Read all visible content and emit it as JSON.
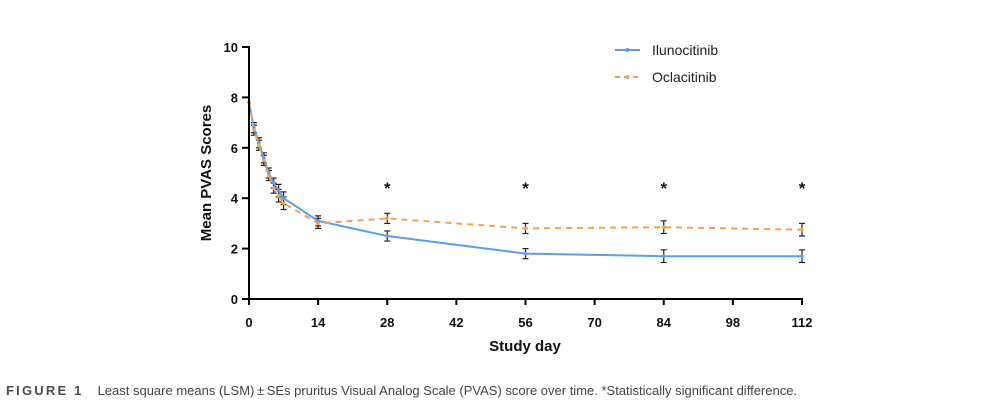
{
  "chart_data": {
    "type": "line",
    "title": "",
    "xlabel": "Study day",
    "ylabel": "Mean PVAS Scores",
    "xlim": [
      0,
      112
    ],
    "ylim": [
      0,
      10
    ],
    "x_ticks": [
      0,
      14,
      28,
      42,
      56,
      70,
      84,
      98,
      112
    ],
    "y_ticks": [
      0,
      2,
      4,
      6,
      8,
      10
    ],
    "grid": false,
    "legend_position": "top-right",
    "series": [
      {
        "name": "Ilunocitinib",
        "color": "#5b9ee9",
        "line_style": "solid",
        "marker": "dot",
        "points": [
          {
            "x": 0,
            "y": 7.8,
            "se": 0.0
          },
          {
            "x": 1,
            "y": 6.8,
            "se": 0.2
          },
          {
            "x": 2,
            "y": 6.2,
            "se": 0.2
          },
          {
            "x": 3,
            "y": 5.6,
            "se": 0.2
          },
          {
            "x": 4,
            "y": 5.0,
            "se": 0.2
          },
          {
            "x": 5,
            "y": 4.6,
            "se": 0.2
          },
          {
            "x": 6,
            "y": 4.3,
            "se": 0.25
          },
          {
            "x": 7,
            "y": 4.0,
            "se": 0.25
          },
          {
            "x": 14,
            "y": 3.1,
            "se": 0.2
          },
          {
            "x": 28,
            "y": 2.5,
            "se": 0.2
          },
          {
            "x": 56,
            "y": 1.8,
            "se": 0.2
          },
          {
            "x": 84,
            "y": 1.7,
            "se": 0.25
          },
          {
            "x": 112,
            "y": 1.7,
            "se": 0.25
          }
        ]
      },
      {
        "name": "Oclacitinib",
        "color": "#f5a04a",
        "line_style": "dashed",
        "marker": "dot",
        "points": [
          {
            "x": 0,
            "y": 7.8,
            "se": 0.0
          },
          {
            "x": 1,
            "y": 6.7,
            "se": 0.2
          },
          {
            "x": 2,
            "y": 6.1,
            "se": 0.2
          },
          {
            "x": 3,
            "y": 5.5,
            "se": 0.2
          },
          {
            "x": 4,
            "y": 4.9,
            "se": 0.2
          },
          {
            "x": 5,
            "y": 4.4,
            "se": 0.2
          },
          {
            "x": 6,
            "y": 4.1,
            "se": 0.25
          },
          {
            "x": 7,
            "y": 3.8,
            "se": 0.25
          },
          {
            "x": 14,
            "y": 3.0,
            "se": 0.2
          },
          {
            "x": 28,
            "y": 3.2,
            "se": 0.2
          },
          {
            "x": 56,
            "y": 2.8,
            "se": 0.2
          },
          {
            "x": 84,
            "y": 2.85,
            "se": 0.25
          },
          {
            "x": 112,
            "y": 2.75,
            "se": 0.25
          }
        ]
      }
    ],
    "annotations": [
      {
        "text": "*",
        "x": 28
      },
      {
        "text": "*",
        "x": 56
      },
      {
        "text": "*",
        "x": 84
      },
      {
        "text": "*",
        "x": 112
      }
    ]
  },
  "caption": {
    "label": "FIGURE 1",
    "text": "Least square means (LSM) ± SEs pruritus Visual Analog Scale (PVAS) score over time. *Statistically significant difference."
  }
}
